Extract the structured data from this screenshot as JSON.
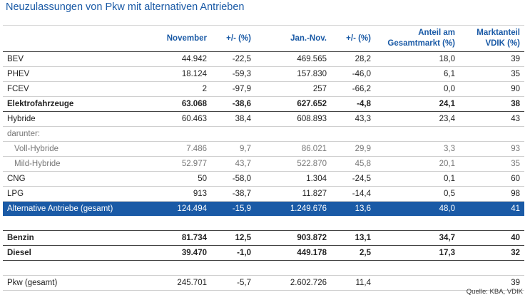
{
  "title": "Neuzulassungen von Pkw mit alternativen Antrieben",
  "headers": {
    "col0": "",
    "col1": "November",
    "col2": "+/- (%)",
    "col3": "Jan.-Nov.",
    "col4": "+/- (%)",
    "col5_line1": "Anteil am",
    "col5_line2": "Gesamtmarkt (%)",
    "col6_line1": "Marktanteil",
    "col6_line2": "VDIK (%)"
  },
  "rows": [
    {
      "label": "BEV",
      "nov": "44.942",
      "nov_pct": "-22,5",
      "jan": "469.565",
      "jan_pct": "28,2",
      "share": "18,0",
      "vdik": "39"
    },
    {
      "label": "PHEV",
      "nov": "18.124",
      "nov_pct": "-59,3",
      "jan": "157.830",
      "jan_pct": "-46,0",
      "share": "6,1",
      "vdik": "35"
    },
    {
      "label": "FCEV",
      "nov": "2",
      "nov_pct": "-97,9",
      "jan": "257",
      "jan_pct": "-66,2",
      "share": "0,0",
      "vdik": "90"
    },
    {
      "label": "Elektrofahrzeuge",
      "nov": "63.068",
      "nov_pct": "-38,6",
      "jan": "627.652",
      "jan_pct": "-4,8",
      "share": "24,1",
      "vdik": "38"
    },
    {
      "label": "Hybride",
      "nov": "60.463",
      "nov_pct": "38,4",
      "jan": "608.893",
      "jan_pct": "43,3",
      "share": "23,4",
      "vdik": "43"
    },
    {
      "label": "darunter:",
      "nov": "",
      "nov_pct": "",
      "jan": "",
      "jan_pct": "",
      "share": "",
      "vdik": ""
    },
    {
      "label": "Voll-Hybride",
      "nov": "7.486",
      "nov_pct": "9,7",
      "jan": "86.021",
      "jan_pct": "29,9",
      "share": "3,3",
      "vdik": "93"
    },
    {
      "label": "Mild-Hybride",
      "nov": "52.977",
      "nov_pct": "43,7",
      "jan": "522.870",
      "jan_pct": "45,8",
      "share": "20,1",
      "vdik": "35"
    },
    {
      "label": "CNG",
      "nov": "50",
      "nov_pct": "-58,0",
      "jan": "1.304",
      "jan_pct": "-24,5",
      "share": "0,1",
      "vdik": "60"
    },
    {
      "label": "LPG",
      "nov": "913",
      "nov_pct": "-38,7",
      "jan": "11.827",
      "jan_pct": "-14,4",
      "share": "0,5",
      "vdik": "98"
    },
    {
      "label": "Alternative Antriebe (gesamt)",
      "nov": "124.494",
      "nov_pct": "-15,9",
      "jan": "1.249.676",
      "jan_pct": "13,6",
      "share": "48,0",
      "vdik": "41"
    },
    {
      "label": "Benzin",
      "nov": "81.734",
      "nov_pct": "12,5",
      "jan": "903.872",
      "jan_pct": "13,1",
      "share": "34,7",
      "vdik": "40"
    },
    {
      "label": "Diesel",
      "nov": "39.470",
      "nov_pct": "-1,0",
      "jan": "449.178",
      "jan_pct": "2,5",
      "share": "17,3",
      "vdik": "32"
    },
    {
      "label": "Pkw (gesamt)",
      "nov": "245.701",
      "nov_pct": "-5,7",
      "jan": "2.602.726",
      "jan_pct": "11,4",
      "share": "",
      "vdik": "39"
    }
  ],
  "source": "Quelle: KBA, VDIK"
}
